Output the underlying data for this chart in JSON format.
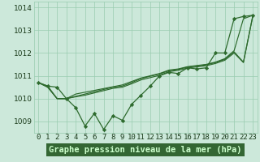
{
  "xlabel": "Graphe pression niveau de la mer (hPa)",
  "x": [
    0,
    1,
    2,
    3,
    4,
    5,
    6,
    7,
    8,
    9,
    10,
    11,
    12,
    13,
    14,
    15,
    16,
    17,
    18,
    19,
    20,
    21,
    22,
    23
  ],
  "series1": [
    1010.7,
    1010.55,
    1010.5,
    1010.0,
    1009.6,
    1008.8,
    1009.35,
    1008.65,
    1009.25,
    1009.05,
    1009.75,
    1010.15,
    1010.55,
    1011.0,
    1011.15,
    1011.1,
    1011.35,
    1011.3,
    1011.35,
    1012.0,
    1012.0,
    1013.5,
    1013.6,
    1013.65
  ],
  "series2": [
    1010.7,
    1010.55,
    1010.0,
    1010.0,
    1010.2,
    1010.28,
    1010.36,
    1010.44,
    1010.52,
    1010.6,
    1010.75,
    1010.9,
    1011.0,
    1011.1,
    1011.25,
    1011.3,
    1011.4,
    1011.45,
    1011.5,
    1011.6,
    1011.75,
    1012.1,
    1013.5,
    1013.65
  ],
  "series3": [
    1010.7,
    1010.5,
    1010.0,
    1010.0,
    1010.1,
    1010.2,
    1010.3,
    1010.4,
    1010.5,
    1010.55,
    1010.7,
    1010.88,
    1010.98,
    1011.08,
    1011.22,
    1011.28,
    1011.38,
    1011.43,
    1011.48,
    1011.58,
    1011.72,
    1012.05,
    1011.6,
    1013.62
  ],
  "series4": [
    1010.7,
    1010.5,
    1010.0,
    1010.0,
    1010.08,
    1010.15,
    1010.25,
    1010.35,
    1010.45,
    1010.5,
    1010.65,
    1010.82,
    1010.92,
    1011.02,
    1011.18,
    1011.24,
    1011.34,
    1011.39,
    1011.44,
    1011.54,
    1011.68,
    1012.0,
    1011.58,
    1013.6
  ],
  "line_color": "#2d6a2d",
  "marker_color": "#2d6a2d",
  "bg_color": "#cce8da",
  "plot_bg": "#cce8da",
  "grid_color": "#99ccb0",
  "xlabel_bg": "#336633",
  "xlabel_color": "#ccffcc",
  "ylim": [
    1008.5,
    1014.25
  ],
  "ytick_vals": [
    1009,
    1010,
    1011,
    1012,
    1013,
    1014
  ],
  "ytick_labels": [
    "1009",
    "1010",
    "1011",
    "1012",
    "1013",
    "1014"
  ],
  "label_fontsize": 7.5,
  "tick_fontsize": 6.5
}
